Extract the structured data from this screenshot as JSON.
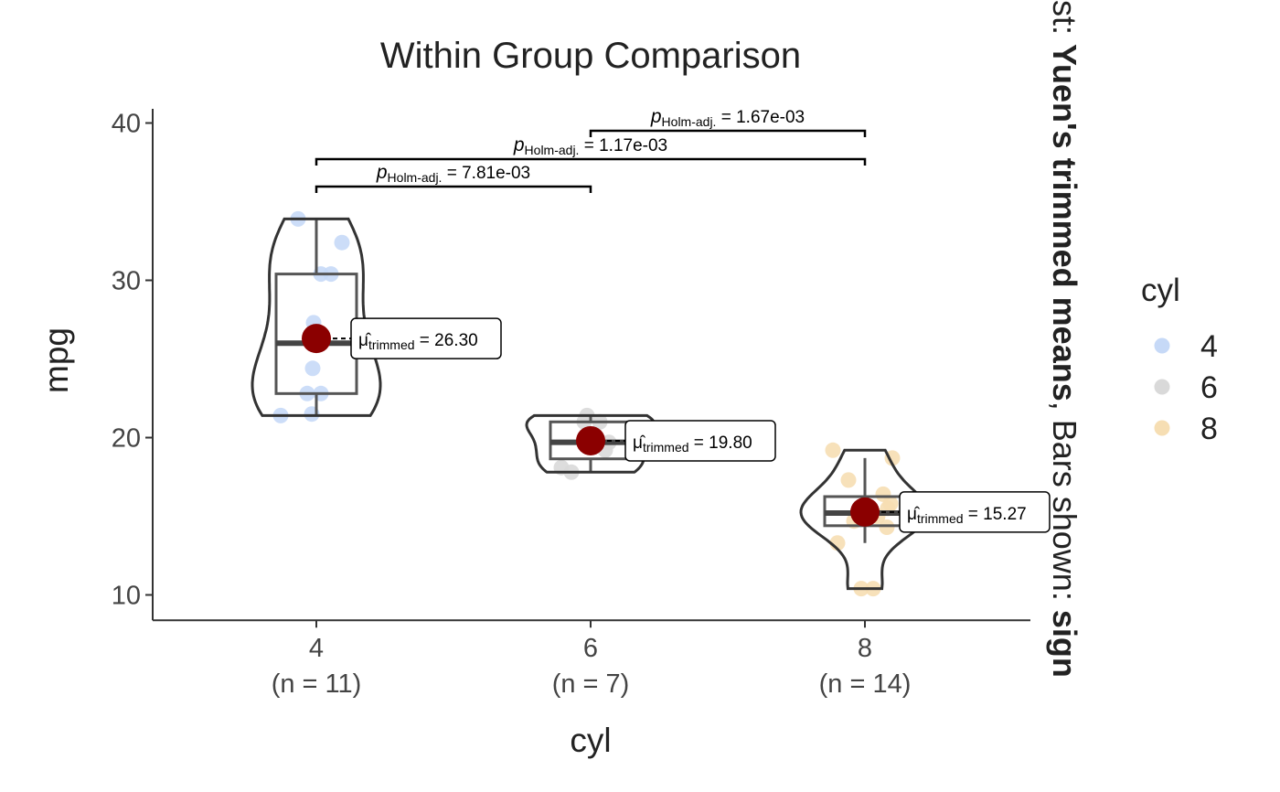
{
  "chart_data": {
    "type": "violin-box-scatter",
    "title": "Within Group Comparison",
    "xlabel": "cyl",
    "ylabel": "mpg",
    "ylim": [
      8.5,
      40.9
    ],
    "yticks": [
      10,
      20,
      30,
      40
    ],
    "grid": false,
    "categories": [
      "4",
      "6",
      "8"
    ],
    "category_counts": [
      "(n = 11)",
      "(n = 7)",
      "(n = 14)"
    ],
    "point_colors": [
      "#c6d9f7",
      "#d9d9d9",
      "#f6deb3"
    ],
    "groups": [
      {
        "category": "4",
        "points": [
          22.8,
          24.4,
          22.8,
          32.4,
          30.4,
          33.9,
          21.5,
          27.3,
          26.0,
          30.4,
          21.4
        ],
        "box": {
          "min": 21.4,
          "q1": 22.8,
          "median": 26.0,
          "q3": 30.4,
          "max": 33.9
        },
        "trimmed_mean": 26.3,
        "mean_label": "26.30"
      },
      {
        "category": "6",
        "points": [
          21.0,
          21.0,
          21.4,
          18.1,
          19.2,
          17.8,
          19.7
        ],
        "box": {
          "min": 17.8,
          "q1": 18.65,
          "median": 19.7,
          "q3": 21.0,
          "max": 21.4
        },
        "trimmed_mean": 19.8,
        "mean_label": "19.80"
      },
      {
        "category": "8",
        "points": [
          18.7,
          14.3,
          16.4,
          17.3,
          15.2,
          10.4,
          10.4,
          14.7,
          15.5,
          15.2,
          13.3,
          19.2,
          15.8,
          15.0
        ],
        "box": {
          "min": 13.3,
          "q1": 14.4,
          "median": 15.2,
          "q3": 16.25,
          "max": 18.7
        },
        "trimmed_mean": 15.27,
        "mean_label": "15.27"
      }
    ],
    "comparisons": [
      {
        "from": "4",
        "to": "6",
        "p_label": "7.81e-03"
      },
      {
        "from": "4",
        "to": "8",
        "p_label": "1.17e-03"
      },
      {
        "from": "6",
        "to": "8",
        "p_label": "1.67e-03"
      }
    ],
    "mean_symbol": "μ̂",
    "mean_subscript": "trimmed",
    "p_symbol": "p",
    "p_subscript": "Holm-adj.",
    "subtitle_prefix": "st: ",
    "subtitle_bold_1": "Yuen's trimmed means",
    "subtitle_mid": ", Bars shown: ",
    "subtitle_bold_2": "sign",
    "legend": {
      "title": "cyl",
      "position": "right",
      "entries": [
        {
          "label": "4",
          "color": "#c6d9f7"
        },
        {
          "label": "6",
          "color": "#d9d9d9"
        },
        {
          "label": "8",
          "color": "#f6deb3"
        }
      ]
    },
    "mean_color": "#8b0000"
  }
}
